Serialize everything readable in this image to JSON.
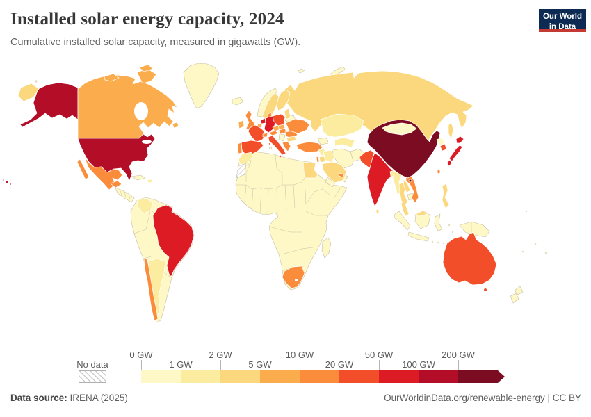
{
  "header": {
    "title": "Installed solar energy capacity, 2024",
    "subtitle": "Cumulative installed solar capacity, measured in gigawatts (GW).",
    "logo_line1": "Our World",
    "logo_line2": "in Data"
  },
  "legend": {
    "no_data_label": "No data",
    "bins": [
      {
        "label": "0 GW",
        "color": "#fdf8c5"
      },
      {
        "label": "1 GW",
        "color": "#fcec9f"
      },
      {
        "label": "2 GW",
        "color": "#fbd87d"
      },
      {
        "label": "5 GW",
        "color": "#fbad4e"
      },
      {
        "label": "10 GW",
        "color": "#fa8c3b"
      },
      {
        "label": "20 GW",
        "color": "#f24e2a"
      },
      {
        "label": "50 GW",
        "color": "#dc1b24"
      },
      {
        "label": "100 GW",
        "color": "#b30d27"
      },
      {
        "label": "200 GW",
        "color": "#7c0c22"
      }
    ]
  },
  "footer": {
    "source_label": "Data source:",
    "source_value": " IRENA (2025)",
    "right_text": "OurWorldinData.org/renewable-energy | CC BY"
  },
  "chart_data": {
    "type": "choropleth_map",
    "title": "Installed solar energy capacity, 2024",
    "unit": "GW",
    "bin_thresholds_gw": [
      0,
      1,
      2,
      5,
      10,
      20,
      50,
      100,
      200
    ],
    "legend_position": "bottom",
    "no_data_countries": [
      "Western Sahara"
    ],
    "country_bins": {
      "china": 8,
      "usa": 7,
      "alaska": 7,
      "hawaii": 7,
      "india": 6,
      "japan": 6,
      "brazil": 6,
      "germany": 6,
      "netherlands": 6,
      "france": 5,
      "spain": 5,
      "italy": 5,
      "poland": 5,
      "australia": 5,
      "pakistan": 5,
      "southkorea": 5,
      "uk": 4,
      "portugal": 4,
      "ukraine": 4,
      "chile": 4,
      "southafrica": 4,
      "mexico": 4,
      "baja": 4,
      "yucatan": 4,
      "vietnam": 4,
      "uae": 4,
      "austria": 4,
      "switzerland": 4,
      "hungary": 4,
      "greece": 4,
      "israel": 4,
      "turkey": 4,
      "taiwan": 4,
      "romania": 4,
      "denmark": 4,
      "canada": 3,
      "victoria": 3,
      "baffin": 3,
      "ellesmere": 3,
      "newfoundland": 3,
      "ireland": 3,
      "czech": 3,
      "slovakia": 3,
      "belgium": 3,
      "russia": 2,
      "chukotka": 2,
      "kamchatka": 2,
      "sakhalin": 2,
      "egypt": 2,
      "saudi": 2,
      "sweden": 2,
      "finland": 2,
      "thailand": 2,
      "laos": 2,
      "philippines": 2,
      "malaysiapen": 2,
      "malaysiaborneo": 2,
      "srilanka": 2,
      "jordan": 2,
      "bulgaria": 2,
      "baltics": 2,
      "argentina": 1,
      "colombia": 1,
      "morocco": 1,
      "myanmar": 1,
      "bangladesh": 1,
      "hispaniola": 1,
      "iraq": 1,
      "syria": 1,
      "stans": 1,
      "kazakhstan": 1
    }
  }
}
